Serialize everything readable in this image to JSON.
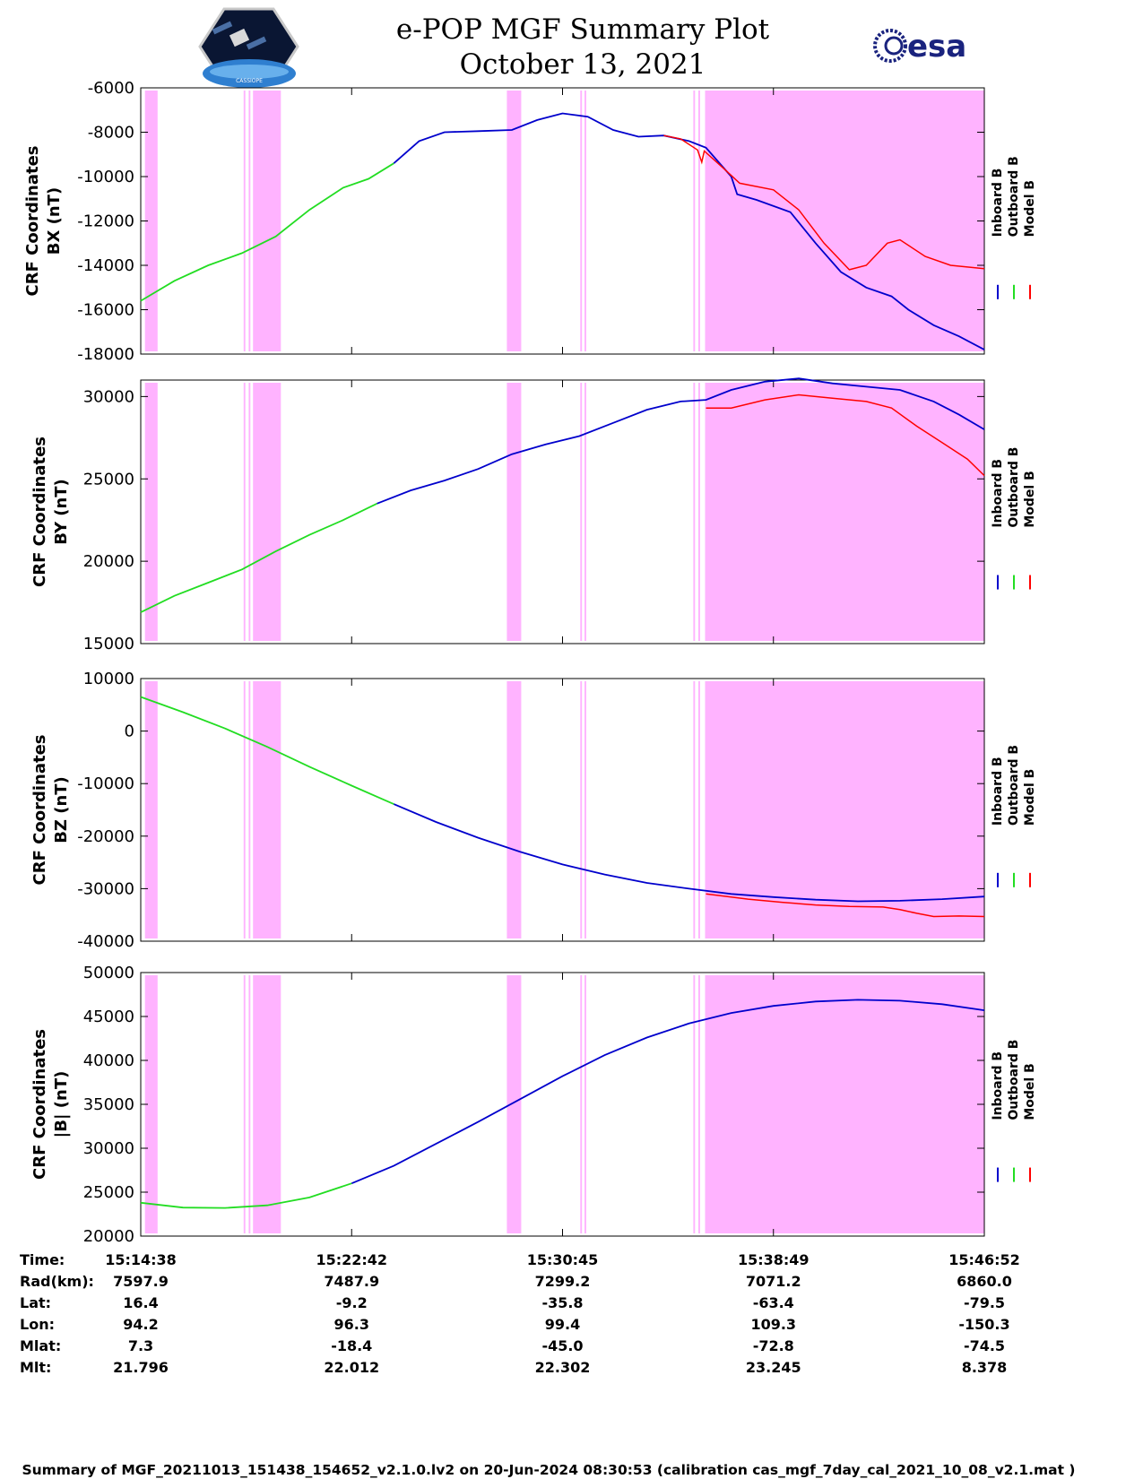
{
  "title": {
    "line1": "e-POP MGF Summary Plot",
    "line2": "October 13, 2021"
  },
  "logos": {
    "cassiope_label": "CASSIOPE",
    "esa_label": "esa"
  },
  "legend": {
    "inboard": "Inboard B",
    "outboard": "Outboard B",
    "model": "Model B"
  },
  "colors": {
    "inboard": "#0000cc",
    "outboard": "#22dd22",
    "model": "#ff0000",
    "shade": "#ffb3ff"
  },
  "chart_data": [
    {
      "type": "line",
      "ylabel_line1": "CRF Coordinates",
      "ylabel_line2": "BX (nT)",
      "ylim": [
        -18000,
        -6000
      ],
      "yticks": [
        -6000,
        -8000,
        -10000,
        -12000,
        -14000,
        -16000,
        -18000
      ],
      "green_end": 0.31,
      "inboard": [
        [
          0,
          -15600
        ],
        [
          0.04,
          -14700
        ],
        [
          0.08,
          -14000
        ],
        [
          0.12,
          -13450
        ],
        [
          0.16,
          -12700
        ],
        [
          0.2,
          -11500
        ],
        [
          0.24,
          -10500
        ],
        [
          0.27,
          -10100
        ],
        [
          0.3,
          -9400
        ],
        [
          0.33,
          -8400
        ],
        [
          0.36,
          -8000
        ],
        [
          0.4,
          -7950
        ],
        [
          0.44,
          -7900
        ],
        [
          0.47,
          -7450
        ],
        [
          0.5,
          -7150
        ],
        [
          0.53,
          -7300
        ],
        [
          0.56,
          -7900
        ],
        [
          0.59,
          -8200
        ],
        [
          0.62,
          -8150
        ],
        [
          0.65,
          -8400
        ],
        [
          0.67,
          -8700
        ],
        [
          0.7,
          -10000
        ],
        [
          0.707,
          -10800
        ],
        [
          0.73,
          -11050
        ],
        [
          0.77,
          -11600
        ],
        [
          0.8,
          -13000
        ],
        [
          0.83,
          -14300
        ],
        [
          0.86,
          -15000
        ],
        [
          0.89,
          -15400
        ],
        [
          0.91,
          -16000
        ],
        [
          0.94,
          -16700
        ],
        [
          0.97,
          -17200
        ],
        [
          1.0,
          -17800
        ]
      ],
      "model": [
        [
          0.62,
          -8150
        ],
        [
          0.64,
          -8300
        ],
        [
          0.66,
          -8800
        ],
        [
          0.665,
          -9350
        ],
        [
          0.668,
          -8850
        ],
        [
          0.69,
          -9600
        ],
        [
          0.71,
          -10300
        ],
        [
          0.75,
          -10600
        ],
        [
          0.78,
          -11500
        ],
        [
          0.81,
          -13000
        ],
        [
          0.84,
          -14200
        ],
        [
          0.86,
          -14000
        ],
        [
          0.885,
          -13000
        ],
        [
          0.9,
          -12850
        ],
        [
          0.93,
          -13600
        ],
        [
          0.96,
          -14000
        ],
        [
          1.0,
          -14150
        ]
      ]
    },
    {
      "type": "line",
      "ylabel_line1": "CRF Coordinates",
      "ylabel_line2": "BY (nT)",
      "ylim": [
        15000,
        31000
      ],
      "yticks": [
        30000,
        25000,
        20000,
        15000
      ],
      "green_end": 0.29,
      "inboard": [
        [
          0,
          16900
        ],
        [
          0.04,
          17900
        ],
        [
          0.08,
          18700
        ],
        [
          0.12,
          19500
        ],
        [
          0.16,
          20600
        ],
        [
          0.2,
          21600
        ],
        [
          0.24,
          22500
        ],
        [
          0.28,
          23500
        ],
        [
          0.32,
          24300
        ],
        [
          0.36,
          24900
        ],
        [
          0.4,
          25600
        ],
        [
          0.44,
          26500
        ],
        [
          0.48,
          27100
        ],
        [
          0.52,
          27600
        ],
        [
          0.56,
          28400
        ],
        [
          0.6,
          29200
        ],
        [
          0.64,
          29700
        ],
        [
          0.67,
          29800
        ],
        [
          0.7,
          30400
        ],
        [
          0.74,
          30900
        ],
        [
          0.78,
          31100
        ],
        [
          0.82,
          30800
        ],
        [
          0.86,
          30600
        ],
        [
          0.9,
          30400
        ],
        [
          0.94,
          29700
        ],
        [
          0.97,
          28900
        ],
        [
          1.0,
          28000
        ]
      ],
      "model": [
        [
          0.67,
          29300
        ],
        [
          0.7,
          29300
        ],
        [
          0.74,
          29800
        ],
        [
          0.78,
          30100
        ],
        [
          0.82,
          29900
        ],
        [
          0.86,
          29700
        ],
        [
          0.89,
          29300
        ],
        [
          0.92,
          28200
        ],
        [
          0.95,
          27200
        ],
        [
          0.98,
          26200
        ],
        [
          1.0,
          25200
        ]
      ]
    },
    {
      "type": "line",
      "ylabel_line1": "CRF Coordinates",
      "ylabel_line2": "BZ (nT)",
      "ylim": [
        -40000,
        10000
      ],
      "yticks": [
        10000,
        0,
        -10000,
        -20000,
        -30000,
        -40000
      ],
      "green_end": 0.31,
      "inboard": [
        [
          0,
          6500
        ],
        [
          0.05,
          3600
        ],
        [
          0.1,
          500
        ],
        [
          0.15,
          -3000
        ],
        [
          0.2,
          -6800
        ],
        [
          0.25,
          -10400
        ],
        [
          0.3,
          -13900
        ],
        [
          0.35,
          -17300
        ],
        [
          0.4,
          -20300
        ],
        [
          0.45,
          -23000
        ],
        [
          0.5,
          -25400
        ],
        [
          0.55,
          -27300
        ],
        [
          0.6,
          -28900
        ],
        [
          0.65,
          -30000
        ],
        [
          0.7,
          -31000
        ],
        [
          0.75,
          -31600
        ],
        [
          0.8,
          -32100
        ],
        [
          0.85,
          -32400
        ],
        [
          0.9,
          -32300
        ],
        [
          0.95,
          -32000
        ],
        [
          1.0,
          -31500
        ]
      ],
      "model": [
        [
          0.67,
          -31000
        ],
        [
          0.72,
          -32000
        ],
        [
          0.76,
          -32600
        ],
        [
          0.8,
          -33100
        ],
        [
          0.84,
          -33400
        ],
        [
          0.88,
          -33500
        ],
        [
          0.9,
          -34000
        ],
        [
          0.92,
          -34700
        ],
        [
          0.94,
          -35300
        ],
        [
          0.97,
          -35200
        ],
        [
          1.0,
          -35300
        ]
      ]
    },
    {
      "type": "line",
      "ylabel_line1": "CRF Coordinates",
      "ylabel_line2": "|B| (nT)",
      "ylim": [
        20000,
        50000
      ],
      "yticks": [
        50000,
        45000,
        40000,
        35000,
        30000,
        25000,
        20000
      ],
      "green_end": 0.28,
      "inboard": [
        [
          0,
          23800
        ],
        [
          0.05,
          23250
        ],
        [
          0.1,
          23200
        ],
        [
          0.15,
          23500
        ],
        [
          0.2,
          24400
        ],
        [
          0.25,
          26000
        ],
        [
          0.3,
          28000
        ],
        [
          0.35,
          30500
        ],
        [
          0.4,
          33000
        ],
        [
          0.45,
          35600
        ],
        [
          0.5,
          38200
        ],
        [
          0.55,
          40600
        ],
        [
          0.6,
          42600
        ],
        [
          0.65,
          44200
        ],
        [
          0.7,
          45400
        ],
        [
          0.75,
          46200
        ],
        [
          0.8,
          46700
        ],
        [
          0.85,
          46900
        ],
        [
          0.9,
          46800
        ],
        [
          0.95,
          46400
        ],
        [
          1.0,
          45700
        ]
      ],
      "model": []
    }
  ],
  "shaded_intervals": [
    [
      0.005,
      0.02
    ],
    [
      0.122,
      0.124
    ],
    [
      0.128,
      0.13
    ],
    [
      0.133,
      0.166
    ],
    [
      0.434,
      0.451
    ],
    [
      0.521,
      0.523
    ],
    [
      0.526,
      0.528
    ],
    [
      0.655,
      0.657
    ],
    [
      0.661,
      0.663
    ],
    [
      0.669,
      1.0
    ]
  ],
  "info_table": {
    "labels": [
      "Time:",
      "Rad(km):",
      "Lat:",
      "Lon:",
      "Mlat:",
      "Mlt:"
    ],
    "columns": [
      [
        "15:14:38",
        "7597.9",
        "16.4",
        "94.2",
        "7.3",
        "21.796"
      ],
      [
        "15:22:42",
        "7487.9",
        "-9.2",
        "96.3",
        "-18.4",
        "22.012"
      ],
      [
        "15:30:45",
        "7299.2",
        "-35.8",
        "99.4",
        "-45.0",
        "22.302"
      ],
      [
        "15:38:49",
        "7071.2",
        "-63.4",
        "109.3",
        "-72.8",
        "23.245"
      ],
      [
        "15:46:52",
        "6860.0",
        "-79.5",
        "-150.3",
        "-74.5",
        "8.378"
      ]
    ]
  },
  "footer": "Summary of MGF_20211013_151438_154652_v2.1.0.lv2 on 20-Jun-2024 08:30:53 (calibration cas_mgf_7day_cal_2021_10_08_v2.1.mat )"
}
